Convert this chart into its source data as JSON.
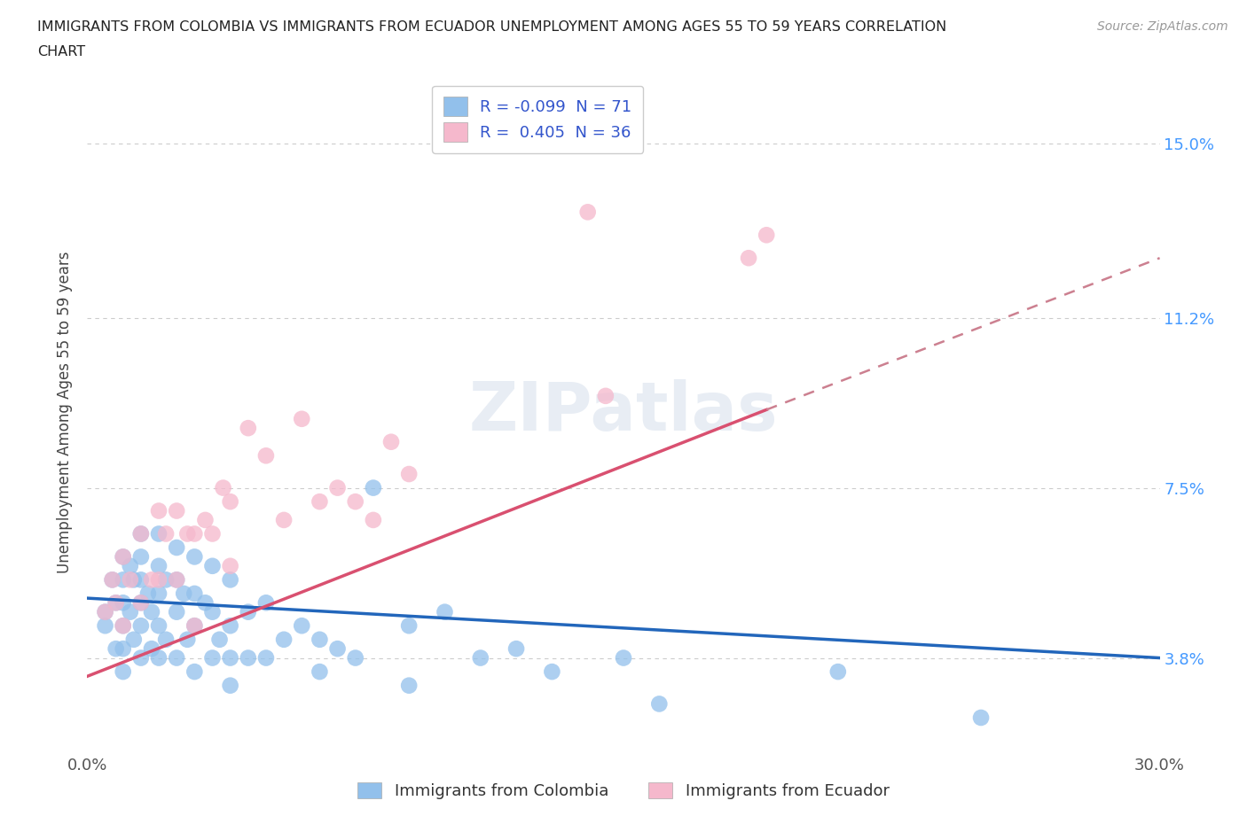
{
  "title_line1": "IMMIGRANTS FROM COLOMBIA VS IMMIGRANTS FROM ECUADOR UNEMPLOYMENT AMONG AGES 55 TO 59 YEARS CORRELATION",
  "title_line2": "CHART",
  "source": "Source: ZipAtlas.com",
  "ylabel": "Unemployment Among Ages 55 to 59 years",
  "xlim": [
    0.0,
    0.3
  ],
  "ylim": [
    0.018,
    0.165
  ],
  "xticks": [
    0.0,
    0.3
  ],
  "xticklabels": [
    "0.0%",
    "30.0%"
  ],
  "ytick_positions": [
    0.038,
    0.075,
    0.112,
    0.15
  ],
  "ytick_labels": [
    "3.8%",
    "7.5%",
    "11.2%",
    "15.0%"
  ],
  "hlines": [
    0.038,
    0.075,
    0.112,
    0.15
  ],
  "colombia_color": "#92c0eb",
  "ecuador_color": "#f5b8cc",
  "colombia_R": -0.099,
  "colombia_N": 71,
  "ecuador_R": 0.405,
  "ecuador_N": 36,
  "trend_blue_color": "#2266bb",
  "trend_pink_solid_color": "#d95070",
  "trend_pink_dash_color": "#cc8090",
  "background_color": "#ffffff",
  "watermark": "ZIPatlas",
  "colombia_legend": "Immigrants from Colombia",
  "ecuador_legend": "Immigrants from Ecuador",
  "colombia_x": [
    0.005,
    0.005,
    0.007,
    0.008,
    0.008,
    0.01,
    0.01,
    0.01,
    0.01,
    0.01,
    0.01,
    0.012,
    0.012,
    0.013,
    0.013,
    0.015,
    0.015,
    0.015,
    0.015,
    0.015,
    0.015,
    0.017,
    0.018,
    0.018,
    0.02,
    0.02,
    0.02,
    0.02,
    0.02,
    0.022,
    0.022,
    0.025,
    0.025,
    0.025,
    0.025,
    0.027,
    0.028,
    0.03,
    0.03,
    0.03,
    0.03,
    0.033,
    0.035,
    0.035,
    0.035,
    0.037,
    0.04,
    0.04,
    0.04,
    0.04,
    0.045,
    0.045,
    0.05,
    0.05,
    0.055,
    0.06,
    0.065,
    0.065,
    0.07,
    0.075,
    0.08,
    0.09,
    0.09,
    0.1,
    0.11,
    0.12,
    0.13,
    0.15,
    0.16,
    0.21,
    0.25
  ],
  "colombia_y": [
    0.048,
    0.045,
    0.055,
    0.05,
    0.04,
    0.06,
    0.055,
    0.05,
    0.045,
    0.04,
    0.035,
    0.058,
    0.048,
    0.055,
    0.042,
    0.065,
    0.06,
    0.055,
    0.05,
    0.045,
    0.038,
    0.052,
    0.048,
    0.04,
    0.065,
    0.058,
    0.052,
    0.045,
    0.038,
    0.055,
    0.042,
    0.062,
    0.055,
    0.048,
    0.038,
    0.052,
    0.042,
    0.06,
    0.052,
    0.045,
    0.035,
    0.05,
    0.058,
    0.048,
    0.038,
    0.042,
    0.055,
    0.045,
    0.038,
    0.032,
    0.048,
    0.038,
    0.05,
    0.038,
    0.042,
    0.045,
    0.042,
    0.035,
    0.04,
    0.038,
    0.075,
    0.045,
    0.032,
    0.048,
    0.038,
    0.04,
    0.035,
    0.038,
    0.028,
    0.035,
    0.025
  ],
  "ecuador_x": [
    0.005,
    0.007,
    0.008,
    0.01,
    0.01,
    0.012,
    0.015,
    0.015,
    0.018,
    0.02,
    0.02,
    0.022,
    0.025,
    0.025,
    0.028,
    0.03,
    0.03,
    0.033,
    0.035,
    0.038,
    0.04,
    0.04,
    0.045,
    0.05,
    0.055,
    0.06,
    0.065,
    0.07,
    0.075,
    0.08,
    0.085,
    0.09,
    0.14,
    0.145,
    0.185,
    0.19
  ],
  "ecuador_y": [
    0.048,
    0.055,
    0.05,
    0.06,
    0.045,
    0.055,
    0.065,
    0.05,
    0.055,
    0.07,
    0.055,
    0.065,
    0.07,
    0.055,
    0.065,
    0.065,
    0.045,
    0.068,
    0.065,
    0.075,
    0.072,
    0.058,
    0.088,
    0.082,
    0.068,
    0.09,
    0.072,
    0.075,
    0.072,
    0.068,
    0.085,
    0.078,
    0.135,
    0.095,
    0.125,
    0.13
  ],
  "trend_blue_x0": 0.0,
  "trend_blue_y0": 0.051,
  "trend_blue_x1": 0.3,
  "trend_blue_y1": 0.038,
  "trend_pink_x0": 0.0,
  "trend_pink_y0": 0.034,
  "trend_pink_solid_x1": 0.19,
  "trend_pink_solid_y1": 0.092,
  "trend_pink_dash_x1": 0.3,
  "trend_pink_dash_y1": 0.125
}
